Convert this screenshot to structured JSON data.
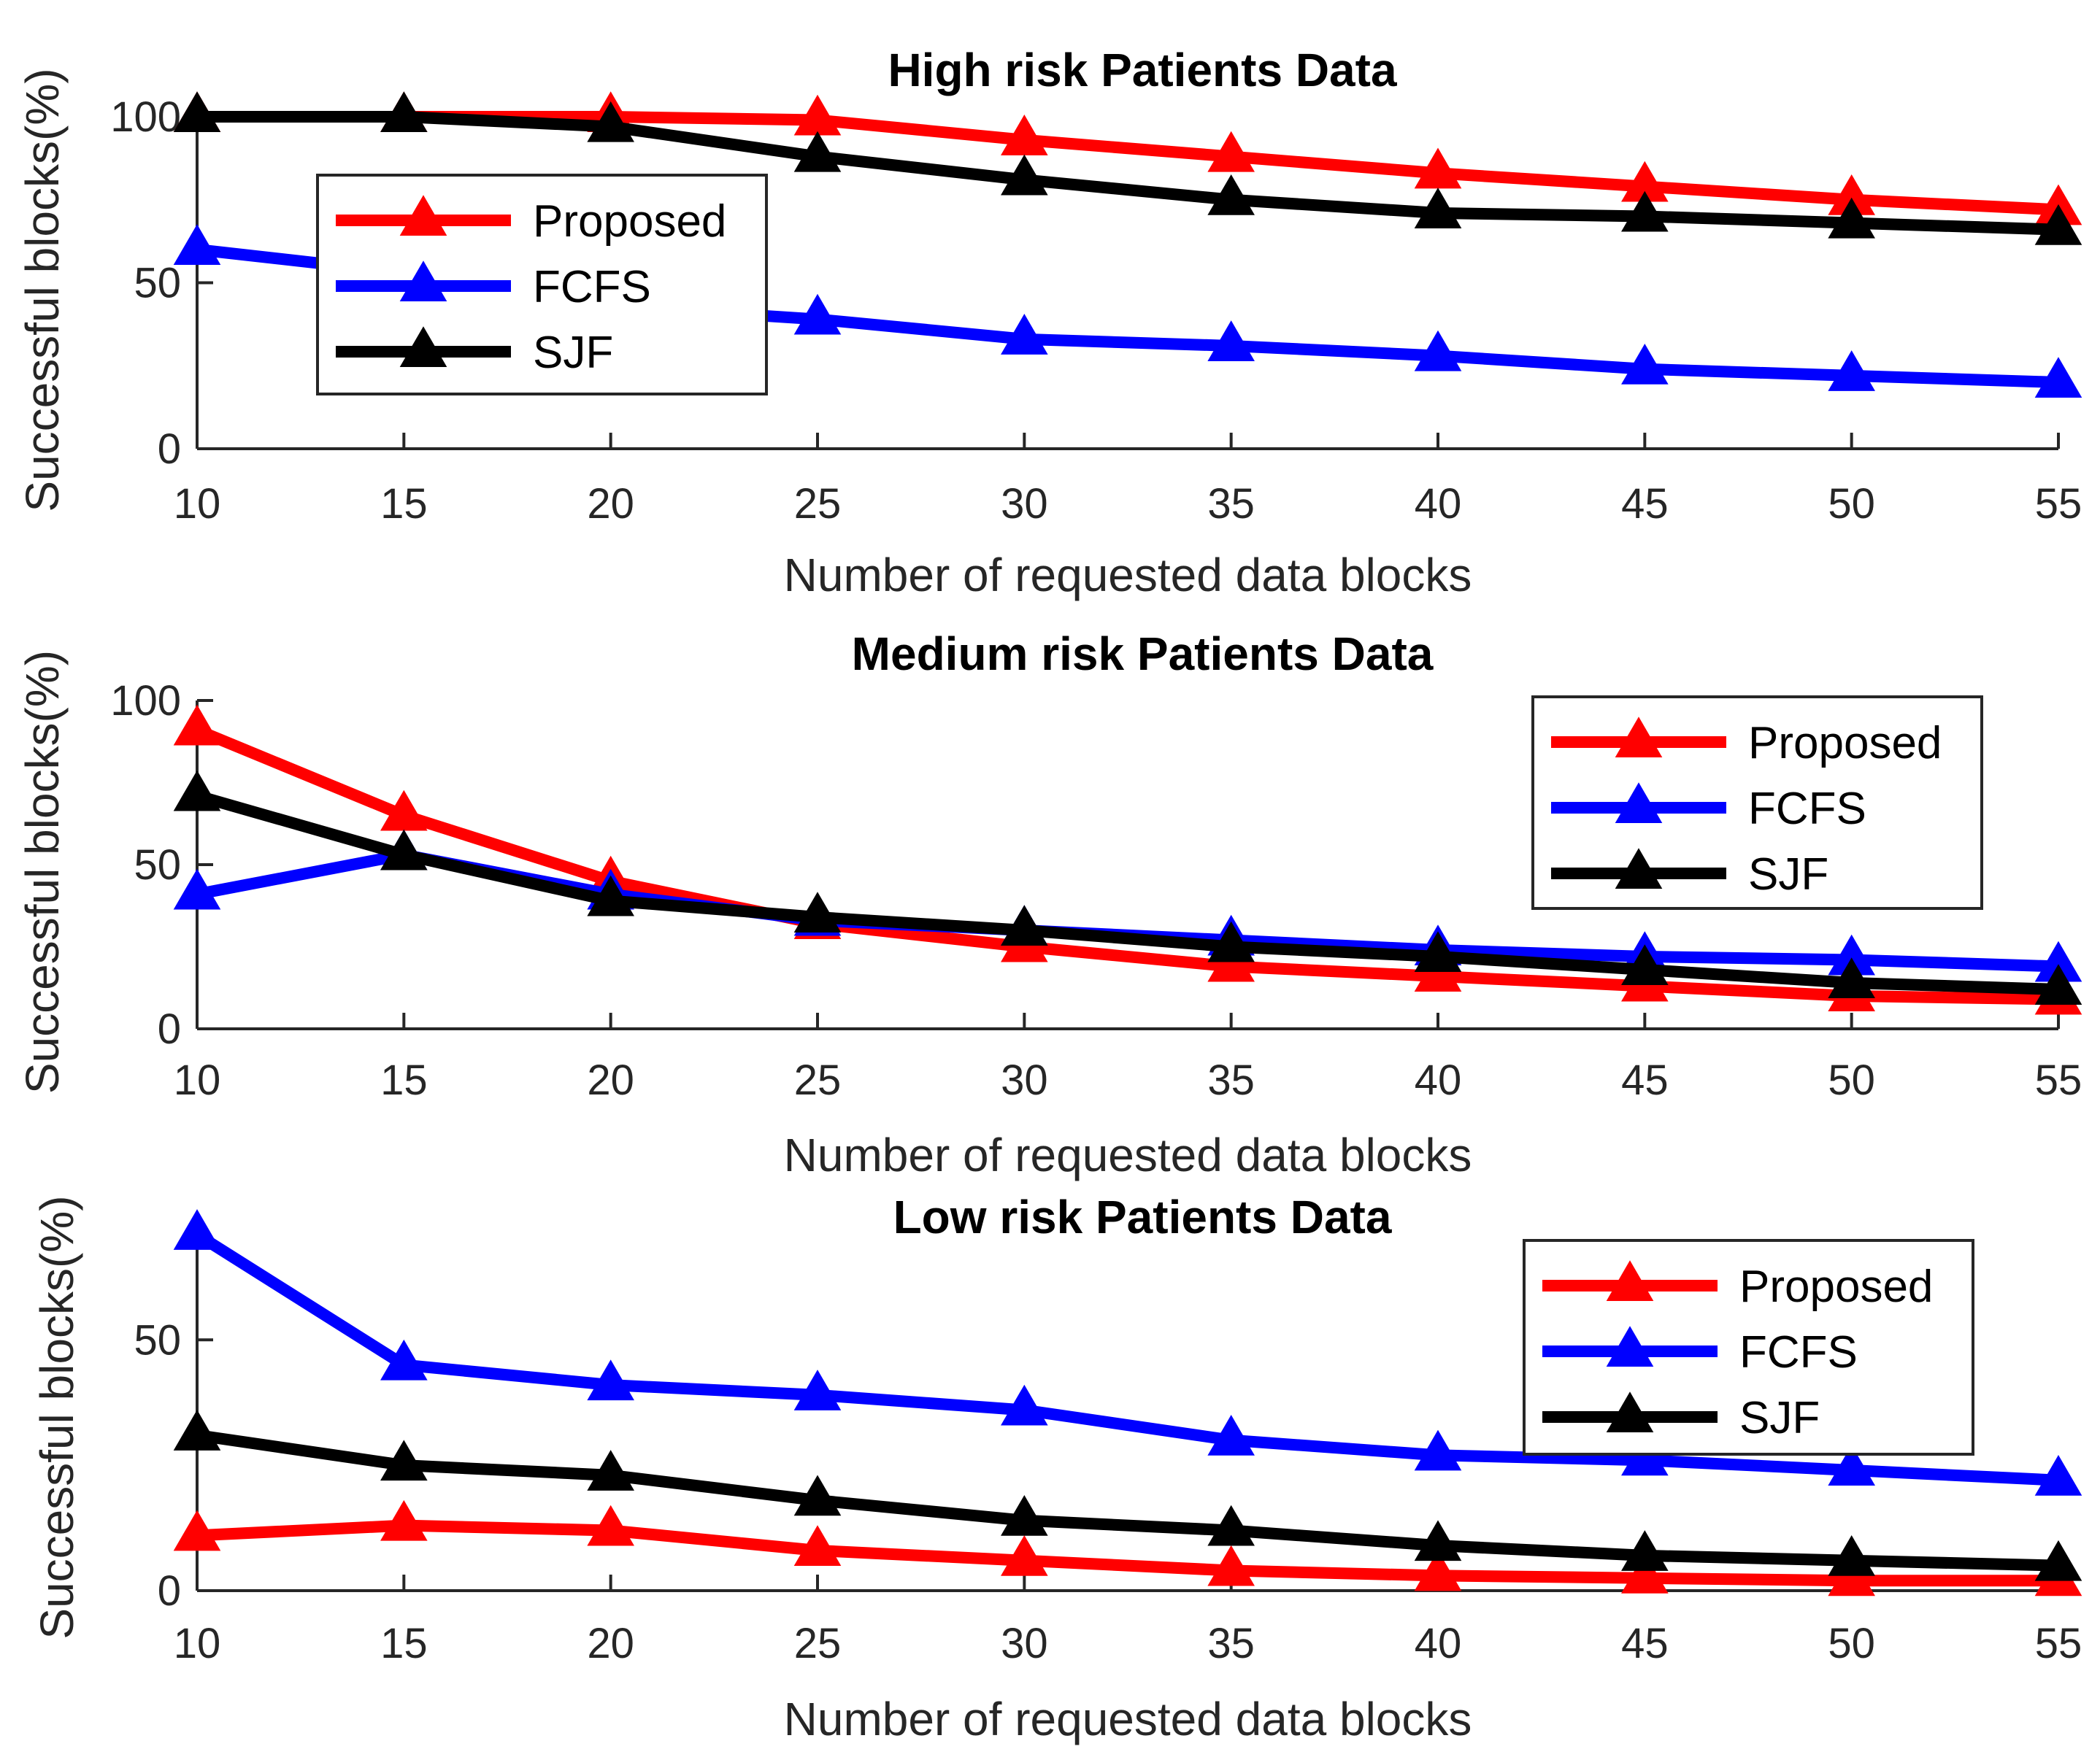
{
  "chart_data": [
    {
      "type": "line",
      "title": "High risk Patients Data",
      "xlabel": "Number of requested data blocks",
      "ylabel": "Successful blocks(%)",
      "x": [
        10,
        15,
        20,
        25,
        30,
        35,
        40,
        45,
        50,
        55
      ],
      "xlim": [
        10,
        55
      ],
      "ylim": [
        0,
        100
      ],
      "yticks": [
        0,
        50,
        100
      ],
      "legend_position": "top-left",
      "series": [
        {
          "name": "Proposed",
          "color": "#ff0000",
          "values": [
            100,
            100,
            100,
            99,
            93,
            88,
            83,
            79,
            75,
            72
          ]
        },
        {
          "name": "FCFS",
          "color": "#0000ff",
          "values": [
            60,
            53,
            43,
            39,
            33,
            31,
            28,
            24,
            22,
            20
          ]
        },
        {
          "name": "SJF",
          "color": "#000000",
          "values": [
            100,
            100,
            97,
            88,
            81,
            75,
            71,
            70,
            68,
            66
          ]
        }
      ]
    },
    {
      "type": "line",
      "title": "Medium risk Patients Data",
      "xlabel": "Number of requested data blocks",
      "ylabel": "Successful blocks(%)",
      "x": [
        10,
        15,
        20,
        25,
        30,
        35,
        40,
        45,
        50,
        55
      ],
      "xlim": [
        10,
        55
      ],
      "ylim": [
        0,
        100
      ],
      "yticks": [
        0,
        50,
        100
      ],
      "legend_position": "top-right",
      "series": [
        {
          "name": "Proposed",
          "color": "#ff0000",
          "values": [
            91,
            65,
            45,
            32,
            25,
            19,
            16,
            13,
            10,
            9
          ]
        },
        {
          "name": "FCFS",
          "color": "#0000ff",
          "values": [
            41,
            53,
            41,
            33,
            30,
            27,
            24,
            22,
            21,
            19
          ]
        },
        {
          "name": "SJF",
          "color": "#000000",
          "values": [
            71,
            53,
            39,
            34,
            30,
            25,
            22,
            18,
            14,
            12
          ]
        }
      ]
    },
    {
      "type": "line",
      "title": "Low risk Patients Data",
      "xlabel": "Number of requested data blocks",
      "ylabel": "Successful blocks(%)",
      "x": [
        10,
        15,
        20,
        25,
        30,
        35,
        40,
        45,
        50,
        55
      ],
      "xlim": [
        10,
        55
      ],
      "ylim": [
        0,
        72
      ],
      "yticks": [
        0,
        50
      ],
      "legend_position": "top-right",
      "series": [
        {
          "name": "Proposed",
          "color": "#ff0000",
          "values": [
            11,
            13,
            12,
            8,
            6,
            4,
            3,
            2.5,
            2,
            2
          ]
        },
        {
          "name": "FCFS",
          "color": "#0000ff",
          "values": [
            71,
            45,
            41,
            39,
            36,
            30,
            27,
            26,
            24,
            22
          ]
        },
        {
          "name": "SJF",
          "color": "#000000",
          "values": [
            31,
            25,
            23,
            18,
            14,
            12,
            9,
            7,
            6,
            5
          ]
        }
      ]
    }
  ]
}
